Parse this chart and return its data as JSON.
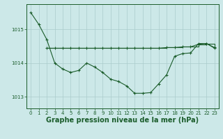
{
  "bg_color": "#cce8e8",
  "line_color": "#1a5c2a",
  "grid_color": "#aacccc",
  "xlabel": "Graphe pression niveau de la mer (hPa)",
  "xlabel_fontsize": 7,
  "xticks": [
    0,
    1,
    2,
    3,
    4,
    5,
    6,
    7,
    8,
    9,
    10,
    11,
    12,
    13,
    14,
    15,
    16,
    17,
    18,
    19,
    20,
    21,
    22,
    23
  ],
  "yticks": [
    1013,
    1014,
    1015
  ],
  "xlim": [
    -0.5,
    23.5
  ],
  "ylim": [
    1012.65,
    1015.75
  ],
  "series1": {
    "x": [
      0,
      1,
      2,
      3,
      4,
      5,
      6,
      7,
      8,
      9,
      10,
      11,
      12,
      13,
      14,
      15,
      16,
      17,
      18,
      19,
      20,
      21,
      22,
      23
    ],
    "y": [
      1015.5,
      1015.15,
      1014.7,
      1014.0,
      1013.82,
      1013.72,
      1013.78,
      1014.0,
      1013.88,
      1013.72,
      1013.52,
      1013.45,
      1013.32,
      1013.1,
      1013.1,
      1013.12,
      1013.38,
      1013.65,
      1014.2,
      1014.28,
      1014.3,
      1014.58,
      1014.58,
      1014.44
    ]
  },
  "series2": {
    "x": [
      2,
      3,
      4,
      5,
      6,
      7,
      8,
      9,
      10,
      11,
      12,
      13,
      14,
      15,
      16,
      17,
      18,
      19,
      20,
      21,
      22,
      23
    ],
    "y": [
      1014.44,
      1014.44,
      1014.44,
      1014.44,
      1014.44,
      1014.44,
      1014.44,
      1014.44,
      1014.44,
      1014.44,
      1014.44,
      1014.44,
      1014.44,
      1014.44,
      1014.44,
      1014.46,
      1014.46,
      1014.48,
      1014.48,
      1014.56,
      1014.58,
      1014.46
    ]
  },
  "series3": {
    "x": [
      2,
      3,
      4,
      5,
      6,
      7,
      8,
      9,
      10,
      11,
      12,
      13,
      14,
      15,
      16,
      17,
      18,
      19,
      20,
      21,
      22,
      23
    ],
    "y": [
      1014.44,
      1014.44,
      1014.44,
      1014.44,
      1014.44,
      1014.44,
      1014.44,
      1014.44,
      1014.44,
      1014.44,
      1014.44,
      1014.44,
      1014.44,
      1014.44,
      1014.44,
      1014.46,
      1014.46,
      1014.48,
      1014.48,
      1014.56,
      1014.58,
      1014.46
    ]
  }
}
